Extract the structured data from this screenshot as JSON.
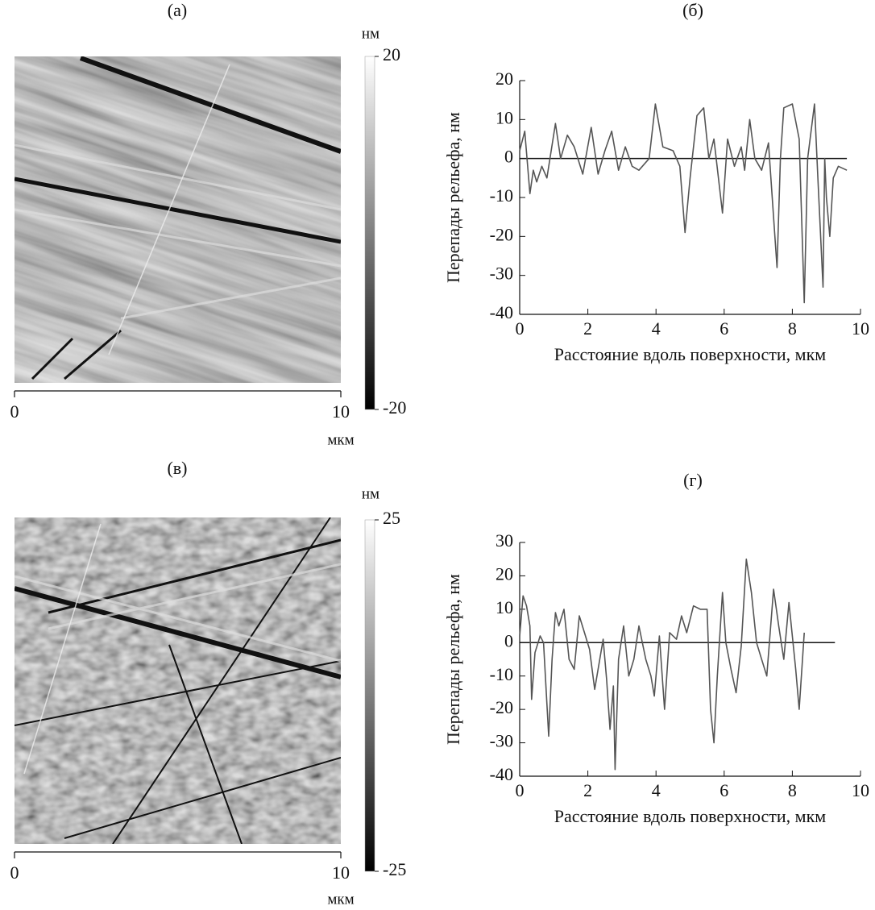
{
  "chart_data": [
    {
      "type": "image",
      "label": "(а)",
      "cbar_label": "нм",
      "clim": [
        -20,
        20
      ],
      "cticks": [
        -20,
        20
      ],
      "xlim": [
        0,
        10
      ],
      "xticks": [
        0,
        10
      ],
      "xlabel": "мкм"
    },
    {
      "type": "line",
      "label": "(б)",
      "xlabel": "Расстояние вдоль поверхности, мкм",
      "ylabel": "Перепады рельефа, нм",
      "color": "#555555",
      "xlim": [
        0,
        10
      ],
      "xticks": [
        0,
        2,
        4,
        6,
        8,
        10
      ],
      "ylim": [
        -40,
        20
      ],
      "yticks": [
        -40,
        -30,
        -20,
        -10,
        0,
        10,
        20
      ],
      "hline": 0,
      "x": [
        0,
        0.15,
        0.3,
        0.4,
        0.5,
        0.65,
        0.8,
        1.05,
        1.2,
        1.4,
        1.6,
        1.85,
        2.1,
        2.3,
        2.5,
        2.7,
        2.9,
        3.1,
        3.3,
        3.5,
        3.8,
        3.98,
        4.2,
        4.5,
        4.7,
        4.85,
        5.0,
        5.2,
        5.4,
        5.55,
        5.7,
        5.95,
        6.1,
        6.3,
        6.5,
        6.6,
        6.75,
        6.9,
        7.1,
        7.3,
        7.55,
        7.65,
        7.75,
        8.0,
        8.2,
        8.35,
        8.45,
        8.65,
        8.75,
        8.9,
        8.95,
        9.0,
        9.1,
        9.2,
        9.35,
        9.6
      ],
      "values": [
        2,
        7,
        -9,
        -3,
        -6,
        -2,
        -5,
        9,
        0,
        6,
        3,
        -4,
        8,
        -4,
        2,
        7,
        -3,
        3,
        -2,
        -3,
        0,
        14,
        3,
        2,
        -2,
        -19,
        -5,
        11,
        13,
        0,
        5,
        -14,
        5,
        -2,
        3,
        -3,
        10,
        0,
        -3,
        4,
        -28,
        0,
        13,
        14,
        5,
        -37,
        0,
        14,
        -5,
        -33,
        0,
        -10,
        -20,
        -5,
        -2,
        -3
      ]
    },
    {
      "type": "image",
      "label": "(в)",
      "cbar_label": "нм",
      "clim": [
        -25,
        25
      ],
      "cticks": [
        -25,
        25
      ],
      "xlim": [
        0,
        10
      ],
      "xticks": [
        0,
        10
      ],
      "xlabel": "мкм"
    },
    {
      "type": "line",
      "label": "(г)",
      "xlabel": "Расстояние вдоль поверхности, мкм",
      "ylabel": "Перепады рельефа, нм",
      "color": "#555555",
      "xlim": [
        0,
        10
      ],
      "xticks": [
        0,
        2,
        4,
        6,
        8,
        10
      ],
      "ylim": [
        -40,
        30
      ],
      "yticks": [
        -40,
        -30,
        -20,
        -10,
        0,
        10,
        20,
        30
      ],
      "hline": 0,
      "x": [
        0,
        0.1,
        0.2,
        0.3,
        0.35,
        0.45,
        0.6,
        0.7,
        0.85,
        0.95,
        1.05,
        1.15,
        1.3,
        1.45,
        1.6,
        1.75,
        1.9,
        2.05,
        2.2,
        2.35,
        2.45,
        2.55,
        2.65,
        2.75,
        2.8,
        2.9,
        3.05,
        3.2,
        3.35,
        3.5,
        3.7,
        3.85,
        3.95,
        4.1,
        4.25,
        4.4,
        4.6,
        4.75,
        4.9,
        5.1,
        5.3,
        5.5,
        5.6,
        5.7,
        5.8,
        5.95,
        6.05,
        6.2,
        6.35,
        6.5,
        6.65,
        6.8,
        6.95,
        7.1,
        7.25,
        7.45,
        7.6,
        7.75,
        7.9,
        8.1,
        8.2,
        8.35
      ],
      "values": [
        2,
        14,
        11,
        5,
        -17,
        -3,
        2,
        0,
        -28,
        -5,
        9,
        5,
        10,
        -5,
        -8,
        8,
        3,
        -2,
        -14,
        -5,
        1,
        -11,
        -26,
        -13,
        -38,
        -5,
        5,
        -10,
        -5,
        5,
        -5,
        -10,
        -16,
        2,
        -20,
        3,
        1,
        8,
        3,
        11,
        10,
        10,
        -20,
        -30,
        -10,
        15,
        0,
        -8,
        -15,
        -1,
        25,
        15,
        0,
        -5,
        -10,
        16,
        5,
        -5,
        12,
        -8,
        -20,
        3
      ]
    }
  ]
}
